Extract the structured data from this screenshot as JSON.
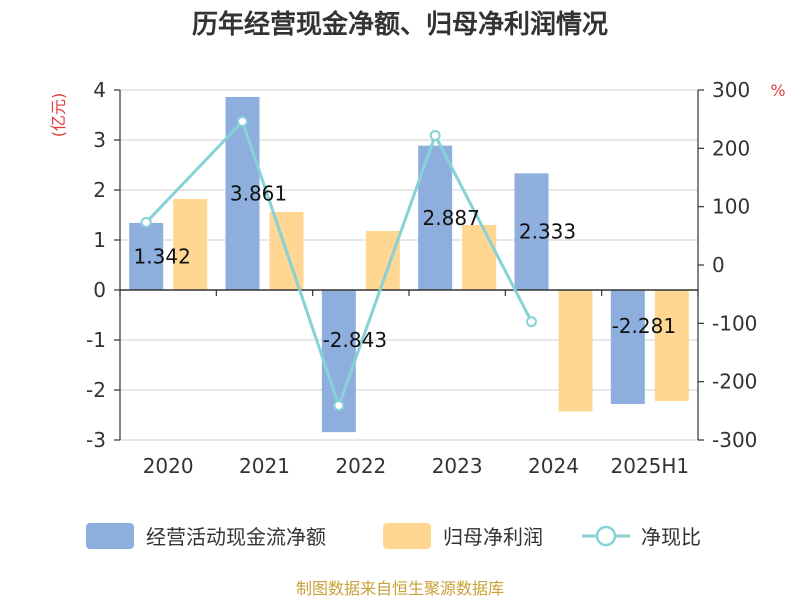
{
  "chart_data": {
    "type": "bar",
    "title": "历年经营现金净额、归母净利润情况",
    "categories": [
      "2020",
      "2021",
      "2022",
      "2023",
      "2024",
      "2025H1"
    ],
    "left_axis": {
      "unit": "(亿元)",
      "range": [
        -3,
        4
      ],
      "ticks": [
        -3,
        -2,
        -1,
        0,
        1,
        2,
        3,
        4
      ]
    },
    "right_axis": {
      "unit": "%",
      "range": [
        -300,
        300
      ],
      "ticks": [
        -300,
        -200,
        -100,
        0,
        100,
        200,
        300
      ]
    },
    "grid": true,
    "legend_position": "bottom",
    "series": [
      {
        "name": "经营活动现金流净额",
        "type": "bar",
        "axis": "left",
        "color": "#8eaede",
        "values": [
          1.342,
          3.861,
          -2.843,
          2.887,
          2.333,
          -2.281
        ],
        "labels": [
          "1.342",
          "3.861",
          "-2.843",
          "2.887",
          "2.333",
          "-2.281"
        ]
      },
      {
        "name": "归母净利润",
        "type": "bar",
        "axis": "left",
        "color": "#ffd793",
        "values": [
          1.82,
          1.56,
          1.18,
          1.3,
          -2.43,
          -2.22
        ]
      },
      {
        "name": "净现比",
        "type": "line",
        "axis": "right",
        "color": "#86d2d6",
        "values": [
          73,
          246,
          -241,
          222,
          -97,
          null
        ]
      }
    ]
  },
  "source": {
    "text": "制图数据来自恒生聚源数据库",
    "color": "#c9a13a"
  },
  "colors": {
    "unit_label": "#e03a3a",
    "axis": "#333333",
    "grid": "#d9d9d9"
  }
}
